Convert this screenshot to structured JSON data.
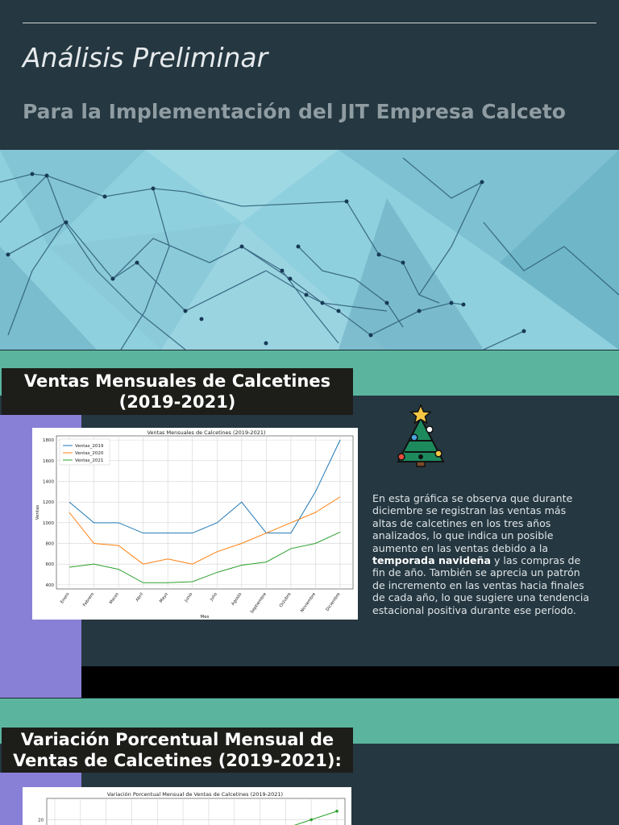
{
  "header": {
    "title": "Análisis Preliminar",
    "subtitle": "Para la Implementación del JIT Empresa Calceto"
  },
  "section1": {
    "heading": "Ventas Mensuales de Calcetines (2019-2021)",
    "icon": "christmas-tree-icon",
    "description_pre": "En esta gráfica se observa que durante diciembre se registran las ventas más altas de calcetines en los tres años analizados, lo que indica un posible aumento en las ventas debido a la ",
    "description_bold": "temporada navideña",
    "description_post": " y las compras de fin de año. También se aprecia un patrón de incremento en las ventas hacia finales de cada año, lo que sugiere una tendencia estacional positiva durante ese período."
  },
  "section2": {
    "heading": "Variación Porcentual Mensual de Ventas de Calcetines (2019-2021):"
  },
  "colors": {
    "background": "#253740",
    "teal": "#5bb59e",
    "purple": "#8880d6",
    "series_2019": "#1f77b4",
    "series_2020": "#ff7f0e",
    "series_2021": "#2ca02c"
  },
  "chart_data": [
    {
      "type": "line",
      "title": "Ventas Mensuales de Calcetines (2019-2021)",
      "xlabel": "Mes",
      "ylabel": "Ventas",
      "categories": [
        "Enero",
        "Febrero",
        "Marzo",
        "Abril",
        "Mayo",
        "Junio",
        "Julio",
        "Agosto",
        "Septiembre",
        "Octubre",
        "Noviembre",
        "Diciembre"
      ],
      "yticks": [
        400,
        600,
        800,
        1000,
        1200,
        1400,
        1600,
        1800
      ],
      "ylim": [
        360,
        1840
      ],
      "grid": true,
      "legend": "top-left",
      "series": [
        {
          "name": "Ventas_2019",
          "color": "#1f77b4",
          "values": [
            1200,
            1000,
            1000,
            900,
            900,
            900,
            1000,
            1200,
            900,
            900,
            1300,
            1800
          ]
        },
        {
          "name": "Ventas_2020",
          "color": "#ff7f0e",
          "values": [
            1100,
            800,
            780,
            600,
            650,
            600,
            720,
            800,
            900,
            1000,
            1100,
            1250
          ]
        },
        {
          "name": "Ventas_2021",
          "color": "#2ca02c",
          "values": [
            570,
            600,
            550,
            420,
            420,
            430,
            520,
            590,
            620,
            750,
            800,
            910
          ]
        }
      ]
    },
    {
      "type": "line",
      "title": "Variación Porcentual Mensual de Ventas de Calcetines (2019-2021)",
      "yticks": [
        20
      ],
      "ylim": [
        5,
        30
      ],
      "grid": true,
      "series": [
        {
          "color": "#2ca02c",
          "values": [
            null,
            null,
            null,
            null,
            null,
            null,
            null,
            null,
            null,
            16,
            20,
            24
          ]
        }
      ]
    }
  ]
}
